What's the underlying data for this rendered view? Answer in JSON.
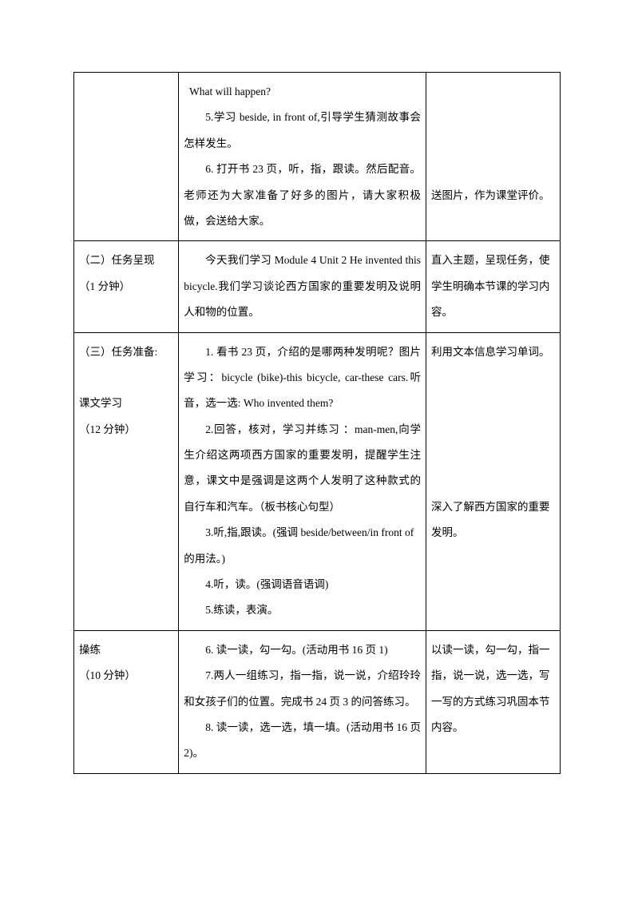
{
  "table": {
    "rows": [
      {
        "col1": [
          ""
        ],
        "col2": [
          "What will happen?",
          "5.学习 beside, in front of,引导学生猜测故事会怎样发生。",
          "6. 打开书 23 页，听，指，跟读。然后配音。老师还为大家准备了好多的图片，请大家积极做，会送给大家。"
        ],
        "col3_lines": [
          "",
          "",
          "",
          "",
          "送图片，作为课堂评价。"
        ]
      },
      {
        "col1": [
          "（二）任务呈现",
          "（1 分钟）"
        ],
        "col2": [
          "今天我们学习 Module 4 Unit 2 He invented this bicycle.我们学习谈论西方国家的重要发明及说明人和物的位置。"
        ],
        "col3_lines": [
          "直入主题，呈现任务，使学生明确本节课的学习内容。"
        ]
      },
      {
        "col1": [
          "（三）任务准备:",
          "",
          "课文学习",
          "（12 分钟）"
        ],
        "col2": [
          "1. 看书 23 页，介绍的是哪两种发明呢？图片学习：bicycle (bike)-this bicycle, car-these cars.听音，选一选: Who invented them?",
          "2.回答，核对，学习并练习 ：man-men,向学生介绍这两项西方国家的重要发明，提醒学生注意，课文中是强调是这两个人发明了这种款式的自行车和汽车。（板书核心句型）",
          "3.听,指,跟读。(强调 beside/between/in front of 的用法。)",
          "4.听，读。(强调语音语调)",
          "5.练读，表演。"
        ],
        "col3_lines": [
          "利用文本信息学习单词。",
          "",
          "",
          "",
          "",
          "",
          "深入了解西方国家的重要发明。"
        ]
      },
      {
        "col1": [
          "  操练",
          "（10 分钟）"
        ],
        "col2": [
          "6. 读一读，勾一勾。(活动用书 16 页 1)",
          "7.两人一组练习，指一指，说一说，介绍玲玲和女孩子们的位置。完成书 24 页 3 的问答练习。",
          "8. 读一读，选一选，填一填。(活动用书 16 页 2)。"
        ],
        "col3_lines": [
          "以读一读，勾一勾，指一指，说一说，选一选，写一写的方式练习巩固本节内容。"
        ]
      }
    ]
  }
}
